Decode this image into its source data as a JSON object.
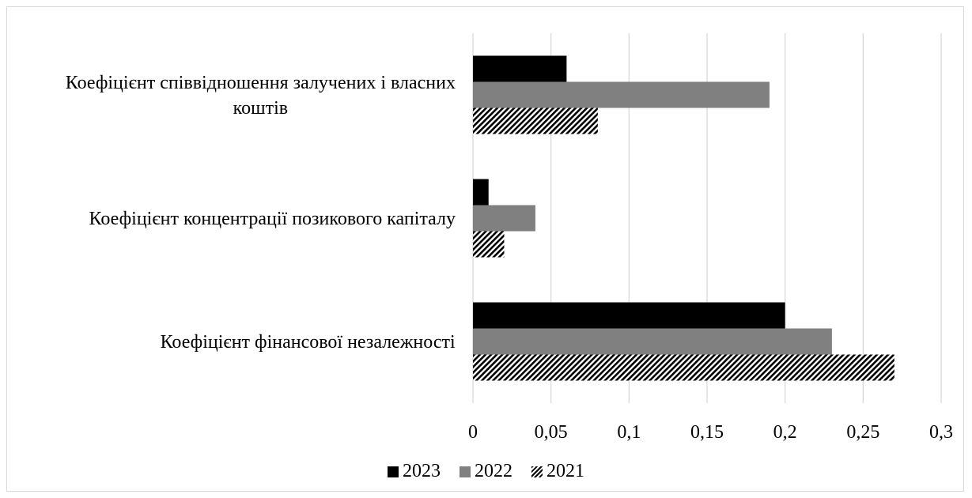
{
  "chart_data": {
    "type": "bar",
    "orientation": "horizontal",
    "title": "",
    "xlabel": "",
    "ylabel": "",
    "xlim": [
      0,
      0.3
    ],
    "x_ticks": [
      "0",
      "0,05",
      "0,1",
      "0,15",
      "0,2",
      "0,25",
      "0,3"
    ],
    "grid": "vertical",
    "legend_position": "bottom",
    "categories": [
      "Коефіцієнт співвідношення залучених і власних коштів",
      "Коефіцієнт концентрації позикового капіталу",
      "Коефіцієнт фінансової незалежності"
    ],
    "category_lines": [
      [
        "Коефіцієнт співвідношення залучених і власних",
        "коштів"
      ],
      [
        "Коефіцієнт концентрації позикового капіталу"
      ],
      [
        "Коефіцієнт фінансової незалежності"
      ]
    ],
    "series": [
      {
        "name": "2023",
        "color": "#000000",
        "pattern": "solid",
        "values": [
          0.06,
          0.01,
          0.2
        ]
      },
      {
        "name": "2022",
        "color": "#808080",
        "pattern": "solid",
        "values": [
          0.19,
          0.04,
          0.23
        ]
      },
      {
        "name": "2021",
        "color": "#000000",
        "pattern": "diagonal-hatch",
        "values": [
          0.08,
          0.02,
          0.27
        ]
      }
    ]
  }
}
